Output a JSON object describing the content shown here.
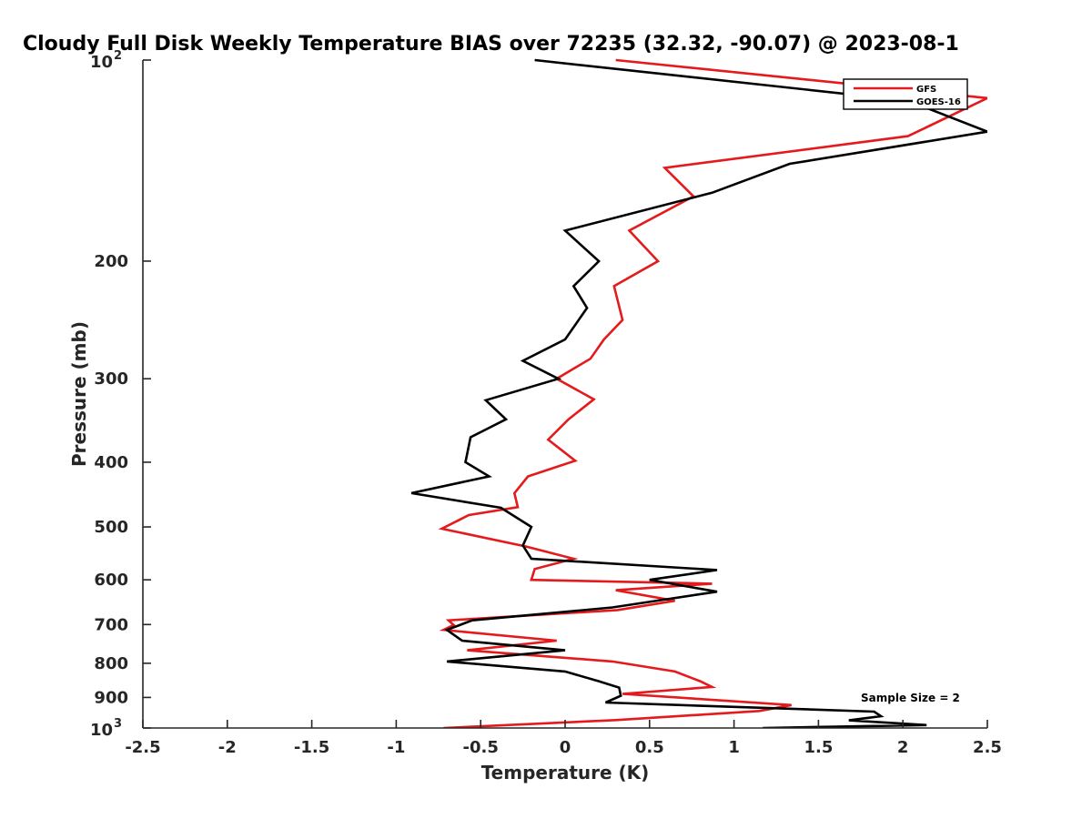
{
  "chart_data": {
    "type": "line",
    "title": "Cloudy Full Disk Weekly Temperature BIAS over 72235 (32.32, -90.07) @ 2023-08-1",
    "xlabel": "Temperature (K)",
    "ylabel": "Pressure (mb)",
    "xlim": [
      -2.5,
      2.5
    ],
    "ylim": [
      100,
      1000
    ],
    "yscale": "log",
    "y_reversed": true,
    "xticks": [
      -2.5,
      -2,
      -1.5,
      -1,
      -0.5,
      0,
      0.5,
      1,
      1.5,
      2,
      2.5
    ],
    "xtick_labels": [
      "-2.5",
      "-2",
      "-1.5",
      "-1",
      "-0.5",
      "0",
      "0.5",
      "1",
      "1.5",
      "2",
      "2.5"
    ],
    "yticks": [
      200,
      300,
      400,
      500,
      600,
      700,
      800,
      900
    ],
    "ytick_labels": [
      "200",
      "300",
      "400",
      "500",
      "600",
      "700",
      "800",
      "900"
    ],
    "y_end_labels": [
      {
        "value": 100,
        "base": "10",
        "exp": "2"
      },
      {
        "value": 1000,
        "base": "10",
        "exp": "3"
      }
    ],
    "legend_position": "top-right",
    "series": [
      {
        "name": "GFS",
        "color": "#e41a1c",
        "x": [
          0.3,
          2.5,
          2.03,
          0.59,
          0.76,
          0.38,
          0.55,
          0.29,
          0.34,
          0.23,
          0.15,
          -0.05,
          0.17,
          0.02,
          -0.1,
          0.06,
          -0.22,
          -0.3,
          -0.28,
          -0.57,
          -0.73,
          -0.23,
          0.05,
          -0.18,
          -0.2,
          0.87,
          0.3,
          0.65,
          0.31,
          -0.69,
          -0.66,
          -0.72,
          -0.05,
          -0.58,
          0.28,
          0.65,
          0.8,
          0.87,
          0.34,
          1.34,
          1.15,
          0.3,
          -0.72
        ],
        "y": [
          100,
          114,
          130,
          145,
          160,
          180,
          200,
          218,
          245,
          262,
          280,
          300,
          322,
          345,
          370,
          398,
          420,
          445,
          467,
          480,
          503,
          535,
          558,
          578,
          600,
          608,
          622,
          645,
          666,
          690,
          701,
          713,
          740,
          765,
          795,
          823,
          851,
          868,
          889,
          924,
          943,
          973,
          1000
        ]
      },
      {
        "name": "GOES-16",
        "color": "#000000",
        "x": [
          -0.18,
          2.03,
          2.5,
          1.33,
          0.87,
          0.0,
          0.2,
          0.05,
          0.13,
          0.0,
          -0.25,
          -0.04,
          -0.47,
          -0.35,
          -0.56,
          -0.59,
          -0.45,
          -0.91,
          -0.38,
          -0.2,
          -0.25,
          -0.2,
          0.9,
          0.5,
          0.9,
          0.28,
          -0.55,
          -0.7,
          -0.61,
          0.0,
          -0.7,
          0.0,
          0.2,
          0.32,
          0.33,
          0.24,
          1.83,
          1.87,
          1.68,
          2.14,
          1.17
        ],
        "y": [
          100,
          115,
          128,
          143,
          158,
          180,
          200,
          218,
          235,
          262,
          282,
          300,
          323,
          345,
          367,
          400,
          420,
          445,
          468,
          500,
          533,
          558,
          580,
          600,
          625,
          660,
          690,
          713,
          740,
          765,
          795,
          823,
          851,
          870,
          895,
          916,
          945,
          960,
          974,
          990,
          1000
        ]
      }
    ],
    "annotations": [
      "Sample Size = 2"
    ]
  }
}
